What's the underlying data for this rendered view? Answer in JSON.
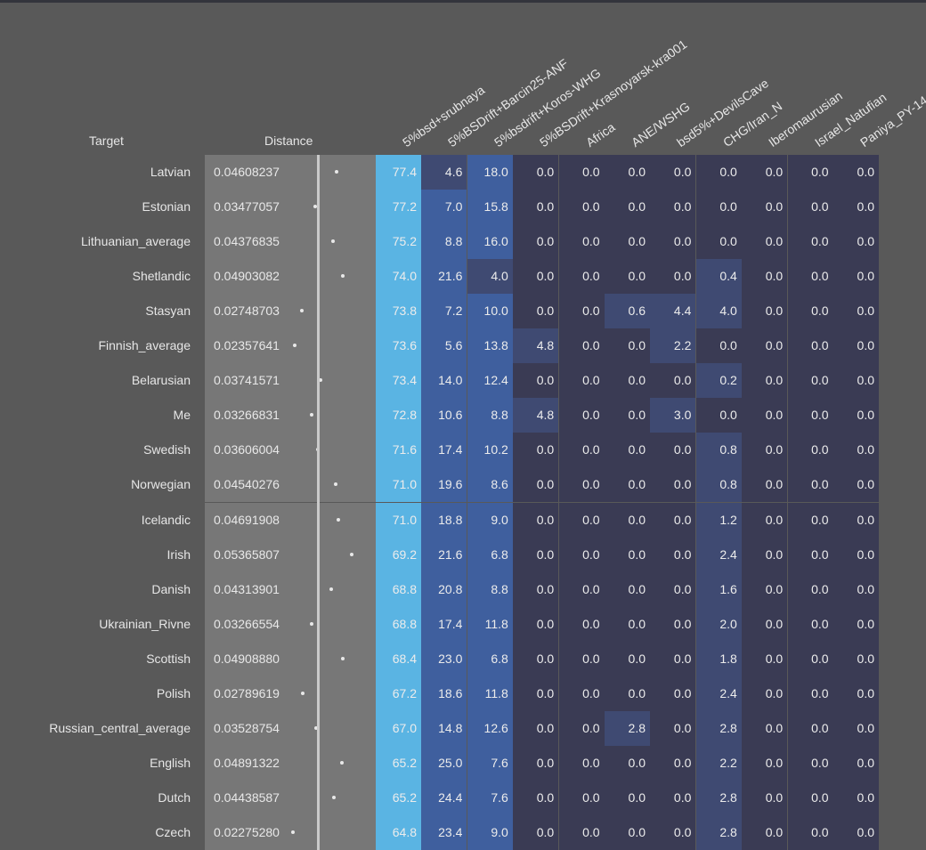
{
  "chart_data": {
    "type": "table",
    "headers": {
      "target": "Target",
      "distance": "Distance",
      "columns": [
        "5%bsd+srubnaya",
        "5%BSDrift+Barcin25-ANF",
        "5%bsdrift+Koros-WHG",
        "5%BSDrift+Krasnoyarsk-kra001",
        "Africa",
        "ANE/WSHG",
        "bsd5%+DevilsCave",
        "CHG/Iran_N",
        "Iberomaurusian",
        "Israel_Natufian",
        "Paniya_PY-14"
      ]
    },
    "rows": [
      {
        "target": "Latvian",
        "distance": "0.04608237",
        "dist_value": 0.04608237,
        "values": [
          "77.4",
          "4.6",
          "18.0",
          "0.0",
          "0.0",
          "0.0",
          "0.0",
          "0.0",
          "0.0",
          "0.0",
          "0.0"
        ]
      },
      {
        "target": "Estonian",
        "distance": "0.03477057",
        "dist_value": 0.03477057,
        "values": [
          "77.2",
          "7.0",
          "15.8",
          "0.0",
          "0.0",
          "0.0",
          "0.0",
          "0.0",
          "0.0",
          "0.0",
          "0.0"
        ]
      },
      {
        "target": "Lithuanian_average",
        "distance": "0.04376835",
        "dist_value": 0.04376835,
        "values": [
          "75.2",
          "8.8",
          "16.0",
          "0.0",
          "0.0",
          "0.0",
          "0.0",
          "0.0",
          "0.0",
          "0.0",
          "0.0"
        ]
      },
      {
        "target": "Shetlandic",
        "distance": "0.04903082",
        "dist_value": 0.04903082,
        "values": [
          "74.0",
          "21.6",
          "4.0",
          "0.0",
          "0.0",
          "0.0",
          "0.0",
          "0.4",
          "0.0",
          "0.0",
          "0.0"
        ]
      },
      {
        "target": "Stasyan",
        "distance": "0.02748703",
        "dist_value": 0.02748703,
        "values": [
          "73.8",
          "7.2",
          "10.0",
          "0.0",
          "0.0",
          "0.6",
          "4.4",
          "4.0",
          "0.0",
          "0.0",
          "0.0"
        ]
      },
      {
        "target": "Finnish_average",
        "distance": "0.02357641",
        "dist_value": 0.02357641,
        "values": [
          "73.6",
          "5.6",
          "13.8",
          "4.8",
          "0.0",
          "0.0",
          "2.2",
          "0.0",
          "0.0",
          "0.0",
          "0.0"
        ]
      },
      {
        "target": "Belarusian",
        "distance": "0.03741571",
        "dist_value": 0.03741571,
        "values": [
          "73.4",
          "14.0",
          "12.4",
          "0.0",
          "0.0",
          "0.0",
          "0.0",
          "0.2",
          "0.0",
          "0.0",
          "0.0"
        ]
      },
      {
        "target": "Me",
        "distance": "0.03266831",
        "dist_value": 0.03266831,
        "values": [
          "72.8",
          "10.6",
          "8.8",
          "4.8",
          "0.0",
          "0.0",
          "3.0",
          "0.0",
          "0.0",
          "0.0",
          "0.0"
        ]
      },
      {
        "target": "Swedish",
        "distance": "0.03606004",
        "dist_value": 0.03606004,
        "values": [
          "71.6",
          "17.4",
          "10.2",
          "0.0",
          "0.0",
          "0.0",
          "0.0",
          "0.8",
          "0.0",
          "0.0",
          "0.0"
        ]
      },
      {
        "target": "Norwegian",
        "distance": "0.04540276",
        "dist_value": 0.04540276,
        "values": [
          "71.0",
          "19.6",
          "8.6",
          "0.0",
          "0.0",
          "0.0",
          "0.0",
          "0.8",
          "0.0",
          "0.0",
          "0.0"
        ]
      },
      {
        "target": "Icelandic",
        "distance": "0.04691908",
        "dist_value": 0.04691908,
        "values": [
          "71.0",
          "18.8",
          "9.0",
          "0.0",
          "0.0",
          "0.0",
          "0.0",
          "1.2",
          "0.0",
          "0.0",
          "0.0"
        ]
      },
      {
        "target": "Irish",
        "distance": "0.05365807",
        "dist_value": 0.05365807,
        "values": [
          "69.2",
          "21.6",
          "6.8",
          "0.0",
          "0.0",
          "0.0",
          "0.0",
          "2.4",
          "0.0",
          "0.0",
          "0.0"
        ]
      },
      {
        "target": "Danish",
        "distance": "0.04313901",
        "dist_value": 0.04313901,
        "values": [
          "68.8",
          "20.8",
          "8.8",
          "0.0",
          "0.0",
          "0.0",
          "0.0",
          "1.6",
          "0.0",
          "0.0",
          "0.0"
        ]
      },
      {
        "target": "Ukrainian_Rivne",
        "distance": "0.03266554",
        "dist_value": 0.03266554,
        "values": [
          "68.8",
          "17.4",
          "11.8",
          "0.0",
          "0.0",
          "0.0",
          "0.0",
          "2.0",
          "0.0",
          "0.0",
          "0.0"
        ]
      },
      {
        "target": "Scottish",
        "distance": "0.04908880",
        "dist_value": 0.0490888,
        "values": [
          "68.4",
          "23.0",
          "6.8",
          "0.0",
          "0.0",
          "0.0",
          "0.0",
          "1.8",
          "0.0",
          "0.0",
          "0.0"
        ]
      },
      {
        "target": "Polish",
        "distance": "0.02789619",
        "dist_value": 0.02789619,
        "values": [
          "67.2",
          "18.6",
          "11.8",
          "0.0",
          "0.0",
          "0.0",
          "0.0",
          "2.4",
          "0.0",
          "0.0",
          "0.0"
        ]
      },
      {
        "target": "Russian_central_average",
        "distance": "0.03528754",
        "dist_value": 0.03528754,
        "values": [
          "67.0",
          "14.8",
          "12.6",
          "0.0",
          "0.0",
          "2.8",
          "0.0",
          "2.8",
          "0.0",
          "0.0",
          "0.0"
        ]
      },
      {
        "target": "English",
        "distance": "0.04891322",
        "dist_value": 0.04891322,
        "values": [
          "65.2",
          "25.0",
          "7.6",
          "0.0",
          "0.0",
          "0.0",
          "0.0",
          "2.2",
          "0.0",
          "0.0",
          "0.0"
        ]
      },
      {
        "target": "Dutch",
        "distance": "0.04438587",
        "dist_value": 0.04438587,
        "values": [
          "65.2",
          "24.4",
          "7.6",
          "0.0",
          "0.0",
          "0.0",
          "0.0",
          "2.8",
          "0.0",
          "0.0",
          "0.0"
        ]
      },
      {
        "target": "Czech",
        "distance": "0.02275280",
        "dist_value": 0.0227528,
        "values": [
          "64.8",
          "23.4",
          "9.0",
          "0.0",
          "0.0",
          "0.0",
          "0.0",
          "2.8",
          "0.0",
          "0.0",
          "0.0"
        ]
      }
    ],
    "colors": {
      "zero": "#3a3b54",
      "low": "#3f4a72",
      "mid": "#3f5f9e",
      "high": "#5ab4e3",
      "distance_bg": "#777777",
      "background": "#595959"
    }
  }
}
